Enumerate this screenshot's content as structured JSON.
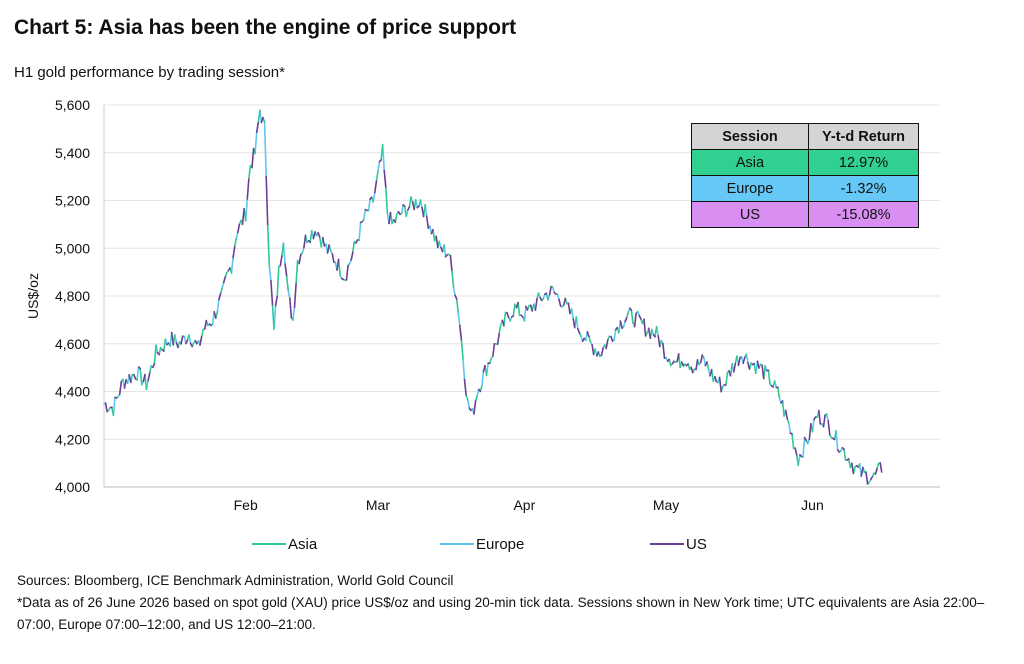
{
  "title": "Chart 5: Asia has been the engine of price support",
  "subtitle": "H1 gold performance by trading session*",
  "colors": {
    "asia": "#2fc98f",
    "europe": "#5ec6f2",
    "us": "#6b3d94"
  },
  "table": {
    "headers": [
      "Session",
      "Y-t-d Return"
    ],
    "rows": [
      {
        "session": "Asia",
        "return": "12.97%",
        "color": "#2fd090"
      },
      {
        "session": "Europe",
        "return": "-1.32%",
        "color": "#66c8f6"
      },
      {
        "session": "US",
        "return": "-15.08%",
        "color": "#d98ef2"
      }
    ]
  },
  "notes": {
    "sources": "Sources: Bloomberg, ICE Benchmark Administration, World Gold Council",
    "footnote": "*Data as of 26 June 2026 based on spot gold (XAU) price US$/oz and using 20-min tick data. Sessions shown in New York time; UTC equivalents are Asia 22:00–07:00, Europe 07:00–12:00, and US 12:00–21:00."
  },
  "chart_data": {
    "type": "line",
    "ylabel": "US$/oz",
    "xlabel": "",
    "ylim": [
      4000,
      5600
    ],
    "yticks": [
      "4,000",
      "4,200",
      "4,400",
      "4,600",
      "4,800",
      "5,000",
      "5,200",
      "5,400",
      "5,600"
    ],
    "xticks": [
      "Feb",
      "Mar",
      "Apr",
      "May",
      "Jun"
    ],
    "xtick_days": [
      31,
      59,
      90,
      120,
      151
    ],
    "grid": "horizontal",
    "legend_position": "bottom",
    "x_unit": "day of year 2026",
    "xlim": [
      1,
      178
    ],
    "series": [
      {
        "name": "Asia"
      },
      {
        "name": "Europe"
      },
      {
        "name": "US"
      }
    ],
    "price_path": [
      [
        1,
        4350
      ],
      [
        3,
        4330
      ],
      [
        5,
        4440
      ],
      [
        8,
        4480
      ],
      [
        10,
        4430
      ],
      [
        12,
        4560
      ],
      [
        15,
        4620
      ],
      [
        17,
        4600
      ],
      [
        19,
        4640
      ],
      [
        21,
        4580
      ],
      [
        22,
        4660
      ],
      [
        24,
        4700
      ],
      [
        26,
        4800
      ],
      [
        27,
        4880
      ],
      [
        28,
        4930
      ],
      [
        29,
        5060
      ],
      [
        30,
        5100
      ],
      [
        31,
        5150
      ],
      [
        32,
        5350
      ],
      [
        33,
        5400
      ],
      [
        34,
        5580
      ],
      [
        35,
        5500
      ],
      [
        36,
        4950
      ],
      [
        37,
        4650
      ],
      [
        38,
        4900
      ],
      [
        39,
        5050
      ],
      [
        40,
        4800
      ],
      [
        41,
        4700
      ],
      [
        42,
        4950
      ],
      [
        44,
        5050
      ],
      [
        46,
        5080
      ],
      [
        48,
        5000
      ],
      [
        50,
        4950
      ],
      [
        52,
        4880
      ],
      [
        54,
        5000
      ],
      [
        56,
        5120
      ],
      [
        58,
        5200
      ],
      [
        59,
        5300
      ],
      [
        60,
        5400
      ],
      [
        61,
        5150
      ],
      [
        62,
        5100
      ],
      [
        64,
        5150
      ],
      [
        66,
        5180
      ],
      [
        68,
        5200
      ],
      [
        70,
        5100
      ],
      [
        72,
        5000
      ],
      [
        74,
        4980
      ],
      [
        76,
        4750
      ],
      [
        77,
        4550
      ],
      [
        78,
        4350
      ],
      [
        79,
        4300
      ],
      [
        80,
        4400
      ],
      [
        82,
        4500
      ],
      [
        84,
        4600
      ],
      [
        86,
        4700
      ],
      [
        88,
        4750
      ],
      [
        90,
        4720
      ],
      [
        92,
        4760
      ],
      [
        94,
        4800
      ],
      [
        96,
        4820
      ],
      [
        98,
        4780
      ],
      [
        100,
        4720
      ],
      [
        102,
        4650
      ],
      [
        104,
        4600
      ],
      [
        106,
        4560
      ],
      [
        108,
        4620
      ],
      [
        110,
        4680
      ],
      [
        112,
        4720
      ],
      [
        114,
        4700
      ],
      [
        116,
        4660
      ],
      [
        118,
        4640
      ],
      [
        120,
        4560
      ],
      [
        122,
        4520
      ],
      [
        124,
        4540
      ],
      [
        126,
        4500
      ],
      [
        128,
        4530
      ],
      [
        130,
        4460
      ],
      [
        132,
        4420
      ],
      [
        134,
        4500
      ],
      [
        136,
        4560
      ],
      [
        138,
        4520
      ],
      [
        140,
        4500
      ],
      [
        142,
        4450
      ],
      [
        144,
        4380
      ],
      [
        146,
        4260
      ],
      [
        148,
        4120
      ],
      [
        150,
        4200
      ],
      [
        152,
        4300
      ],
      [
        154,
        4280
      ],
      [
        156,
        4200
      ],
      [
        158,
        4140
      ],
      [
        160,
        4080
      ],
      [
        162,
        4050
      ],
      [
        164,
        4040
      ],
      [
        166,
        4090
      ]
    ]
  }
}
